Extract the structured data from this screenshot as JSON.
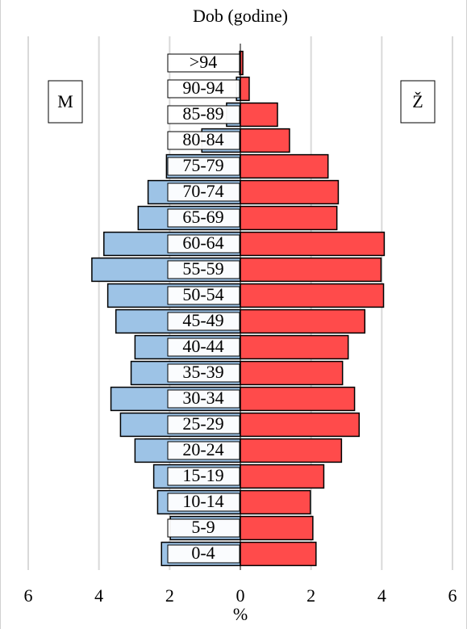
{
  "chart_data": {
    "type": "pyramid",
    "title": "Dob (godine)",
    "x_label": "%",
    "categories": [
      "0-4",
      "5-9",
      "10-14",
      "15-19",
      "20-24",
      "25-29",
      "30-34",
      "35-39",
      "40-44",
      "45-49",
      "50-54",
      "55-59",
      "60-64",
      "65-69",
      "70-74",
      "75-79",
      "80-84",
      "85-89",
      "90-94",
      ">94"
    ],
    "series": [
      {
        "name": "M",
        "color": "#9dc3e6",
        "values": [
          -2.23,
          -1.98,
          -2.34,
          -2.45,
          -2.98,
          -3.39,
          -3.66,
          -3.09,
          -2.98,
          -3.52,
          -3.75,
          -4.2,
          -3.86,
          -2.89,
          -2.61,
          -2.09,
          -1.09,
          -0.39,
          -0.11,
          -0.02
        ]
      },
      {
        "name": "Ž",
        "color": "#ff4b4b",
        "values": [
          2.14,
          2.05,
          1.98,
          2.36,
          2.86,
          3.36,
          3.23,
          2.89,
          3.05,
          3.52,
          4.05,
          3.98,
          4.07,
          2.73,
          2.77,
          2.48,
          1.39,
          1.05,
          0.25,
          0.07
        ]
      }
    ],
    "xlim": [
      -6,
      6
    ],
    "xticks": [
      {
        "value": -6,
        "label": "6"
      },
      {
        "value": -4,
        "label": "4"
      },
      {
        "value": -2,
        "label": "2"
      },
      0,
      2,
      4,
      6
    ],
    "grid": true
  }
}
